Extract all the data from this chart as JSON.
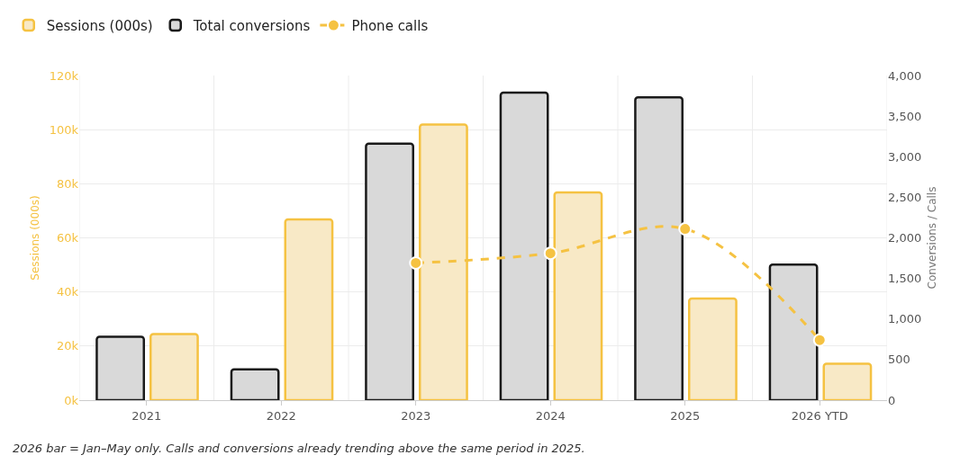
{
  "chart_data": {
    "type": "bar",
    "categories": [
      "2021",
      "2022",
      "2023",
      "2024",
      "2025",
      "2026 YTD"
    ],
    "series": [
      {
        "name": "Sessions (000s)",
        "color": "#f8e9c6",
        "values": [
          24.4,
          66.8,
          101.9,
          76.8,
          37.6,
          13.5
        ]
      },
      {
        "name": "Total conversions",
        "color": "#d9d9d9",
        "axis": "y2",
        "values": [
          780,
          380,
          3160,
          3790,
          3730,
          1670
        ]
      },
      {
        "name": "Phone calls",
        "color": "#f5c242",
        "axis": "y2",
        "type": "line",
        "line_style": "dashed",
        "marker": "circle",
        "values": [
          null,
          null,
          1690,
          1810,
          2110,
          740
        ]
      }
    ],
    "ylabel": "Sessions (000s)",
    "y2label": "Conversions / Calls",
    "ylim": [
      0,
      120
    ],
    "yticks": [
      {
        "value": 0,
        "label": "0k"
      },
      {
        "value": 20,
        "label": "20k"
      },
      {
        "value": 40,
        "label": "40k"
      },
      {
        "value": 60,
        "label": "60k"
      },
      {
        "value": 80,
        "label": "80k"
      },
      {
        "value": 100,
        "label": "100k"
      },
      {
        "value": 120,
        "label": "120k"
      }
    ],
    "y2lim": [
      0,
      4000
    ],
    "y2ticks": [
      0,
      500,
      {
        "value": 1000,
        "label": "1,000"
      },
      {
        "value": 1500,
        "label": "1,500"
      },
      {
        "value": 2000,
        "label": "2,000"
      },
      {
        "value": 2500,
        "label": "2,500"
      },
      {
        "value": 3000,
        "label": "3,000"
      },
      {
        "value": 3500,
        "label": "3,500"
      },
      {
        "value": 4000,
        "label": "4,000"
      }
    ],
    "grid": true,
    "legend": "top left",
    "annotations": [
      "2026 bar = Jan–May only. Calls and conversions already trending above the same period in 2025."
    ]
  }
}
